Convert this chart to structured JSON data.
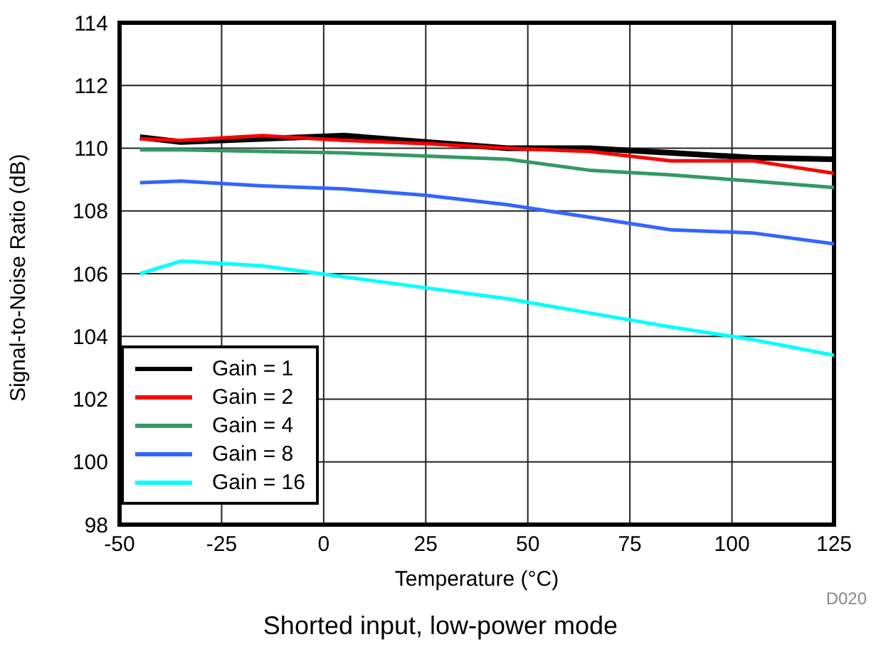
{
  "chart_data": {
    "type": "line",
    "title": "Shorted input, low-power mode",
    "xlabel": "Temperature (°C)",
    "ylabel": "Signal-to-Noise Ratio (dB)",
    "annotations": [
      "D020"
    ],
    "x": [
      -45,
      -35,
      -15,
      5,
      25,
      45,
      65,
      85,
      105,
      125
    ],
    "series": [
      {
        "name": "Gain = 1",
        "color": "#000000",
        "values": [
          110.35,
          110.2,
          110.3,
          110.4,
          110.2,
          110.0,
          110.0,
          109.85,
          109.7,
          109.65
        ]
      },
      {
        "name": "Gain = 2",
        "color": "#ff0000",
        "values": [
          110.3,
          110.25,
          110.4,
          110.25,
          110.15,
          110.0,
          109.9,
          109.6,
          109.6,
          109.2
        ]
      },
      {
        "name": "Gain = 4",
        "color": "#339966",
        "values": [
          109.95,
          109.95,
          109.9,
          109.85,
          109.75,
          109.65,
          109.3,
          109.15,
          108.95,
          108.75
        ]
      },
      {
        "name": "Gain = 8",
        "color": "#3366ff",
        "values": [
          108.9,
          108.95,
          108.8,
          108.7,
          108.5,
          108.2,
          107.8,
          107.4,
          107.3,
          106.95
        ]
      },
      {
        "name": "Gain = 16",
        "color": "#00ffff",
        "values": [
          106.0,
          106.4,
          106.25,
          105.9,
          105.55,
          105.2,
          104.75,
          104.3,
          103.9,
          103.4
        ]
      }
    ],
    "xlim": [
      -50,
      125
    ],
    "xticks": [
      -50,
      -25,
      0,
      25,
      50,
      75,
      100,
      125
    ],
    "ylim": [
      98,
      114
    ],
    "yticks": [
      98,
      100,
      102,
      104,
      106,
      108,
      110,
      112,
      114
    ],
    "grid": true,
    "legend": "bottom left",
    "marker": "none",
    "line_style": "solid"
  }
}
